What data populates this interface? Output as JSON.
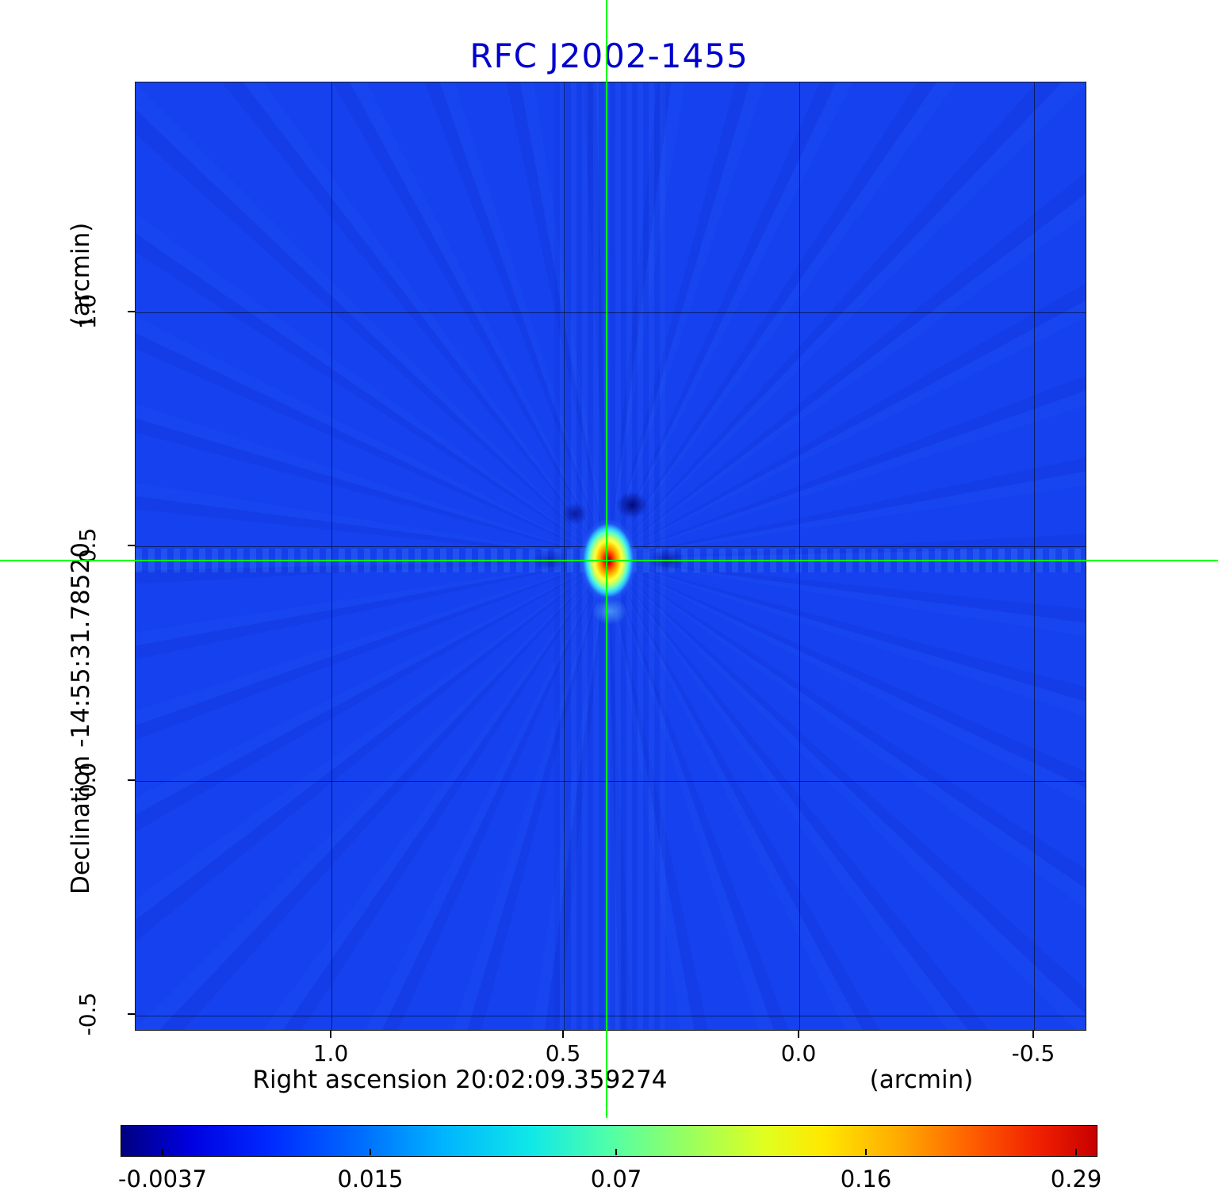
{
  "chart_data": {
    "type": "heatmap",
    "title": "RFC J2002-1455",
    "title_color": "#0000cd",
    "xlabel": "Right ascension  20:02:09.359274",
    "x_unit": "(arcmin)",
    "ylabel": "Declination  -14:55:31.78520",
    "y_unit": "(arcmin)",
    "x_ticks": [
      "1.0",
      "0.5",
      "0.0",
      "-0.5"
    ],
    "y_ticks": [
      "1.0",
      "0.5",
      "0.0",
      "-0.5"
    ],
    "x_range_arcmin": [
      1.42,
      -0.61
    ],
    "y_range_arcmin": [
      -0.54,
      1.49
    ],
    "grid": true,
    "colormap": "jet",
    "background_color": "#1541ee",
    "colorbar_ticks": [
      "-0.0037",
      "0.015",
      "0.07",
      "0.16",
      "0.29"
    ],
    "colorbar_range": [
      -0.0037,
      0.29
    ],
    "crosshair": {
      "color": "#00ff00",
      "x_arcmin": 0.41,
      "y_arcmin": 0.47
    },
    "peak": {
      "x_arcmin": 0.41,
      "y_arcmin": 0.47,
      "value": 0.29
    }
  }
}
